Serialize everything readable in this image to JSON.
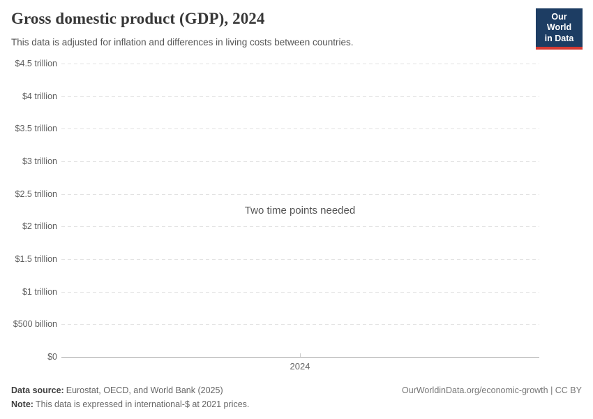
{
  "header": {
    "title": "Gross domestic product (GDP), 2024",
    "subtitle": "This data is adjusted for inflation and differences in living costs between countries.",
    "logo": {
      "line1": "Our World",
      "line2": "in Data",
      "background_color": "#1d3d63",
      "accent_color": "#d73a32"
    }
  },
  "chart_data": {
    "type": "line",
    "title": "Gross domestic product (GDP), 2024",
    "series": [],
    "empty_state_message": "Two time points needed",
    "x_ticks": [
      "2024"
    ],
    "y_ticks": [
      "$0",
      "$500 billion",
      "$1 trillion",
      "$1.5 trillion",
      "$2 trillion",
      "$2.5 trillion",
      "$3 trillion",
      "$3.5 trillion",
      "$4 trillion",
      "$4.5 trillion"
    ],
    "ylim_label": [
      "$0",
      "$4.5 trillion"
    ],
    "grid": "dashed horizontal gridlines, solid zero line",
    "legend": "none"
  },
  "footer": {
    "data_source_label": "Data source:",
    "data_source_value": "Eurostat, OECD, and World Bank (2025)",
    "note_label": "Note:",
    "note_value": "This data is expressed in international-$ at 2021 prices.",
    "link": "OurWorldinData.org/economic-growth | CC BY"
  }
}
